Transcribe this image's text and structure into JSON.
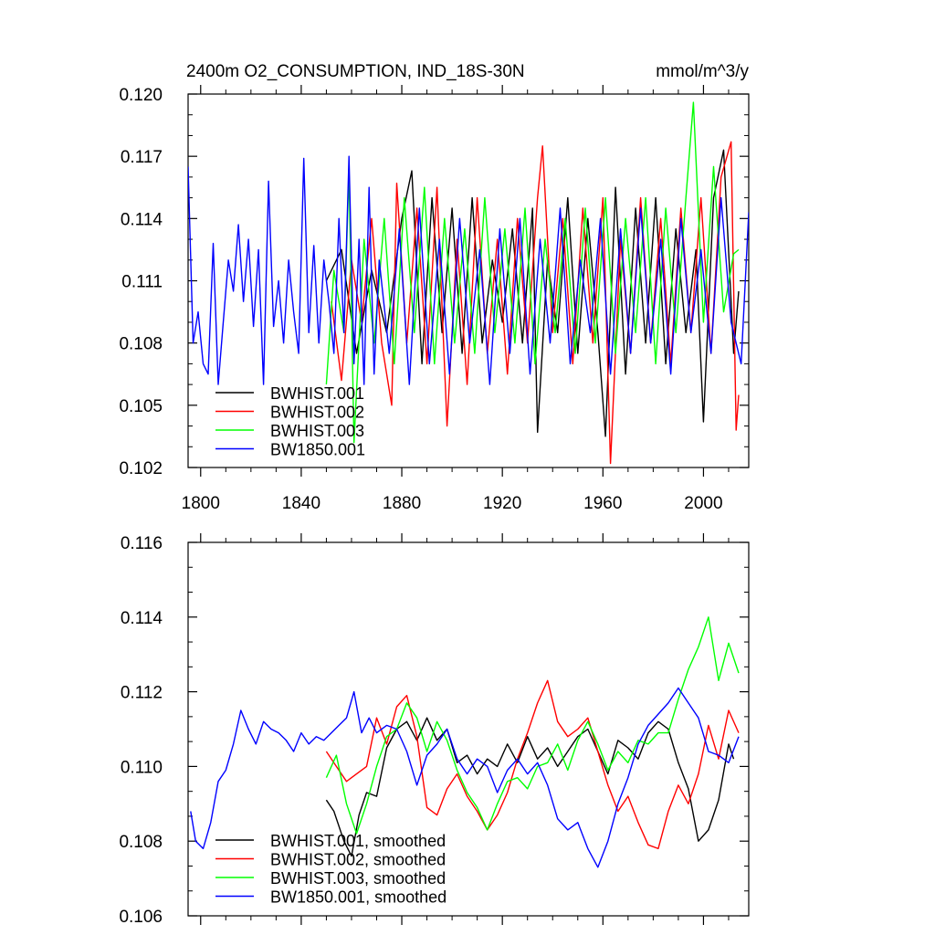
{
  "chart_data": [
    {
      "type": "line",
      "title": "2400m O2_CONSUMPTION, IND_18S-30N",
      "units": "mmol/m^3/y",
      "xlim": [
        1795,
        2018
      ],
      "ylim": [
        0.102,
        0.12
      ],
      "xticks": [
        1800,
        1840,
        1880,
        1920,
        1960,
        2000
      ],
      "xtick_labels": [
        "1800",
        "1840",
        "1880",
        "1920",
        "1960",
        "2000"
      ],
      "yticks": [
        0.102,
        0.105,
        0.108,
        0.111,
        0.114,
        0.117,
        0.12
      ],
      "ytick_labels": [
        "0.102",
        "0.105",
        "0.108",
        "0.111",
        "0.114",
        "0.117",
        "0.120"
      ],
      "legend_position": "bottom-left",
      "series": [
        {
          "name": "BWHIST.001",
          "color": "#000000",
          "x": [
            1850,
            1856,
            1862,
            1868,
            1874,
            1880,
            1884,
            1888,
            1892,
            1896,
            1900,
            1904,
            1908,
            1912,
            1916,
            1920,
            1924,
            1928,
            1932,
            1934,
            1938,
            1942,
            1946,
            1950,
            1954,
            1958,
            1961,
            1965,
            1969,
            1973,
            1977,
            1981,
            1985,
            1989,
            1993,
            1997,
            2000,
            2004,
            2008,
            2012,
            2014
          ],
          "values": [
            0.111,
            0.1125,
            0.1075,
            0.1115,
            0.1085,
            0.114,
            0.1163,
            0.107,
            0.115,
            0.1085,
            0.1145,
            0.1075,
            0.115,
            0.108,
            0.112,
            0.109,
            0.1135,
            0.108,
            0.1145,
            0.1037,
            0.112,
            0.1085,
            0.115,
            0.1075,
            0.114,
            0.1085,
            0.1035,
            0.1155,
            0.1065,
            0.1145,
            0.108,
            0.115,
            0.107,
            0.1135,
            0.1085,
            0.1125,
            0.1042,
            0.115,
            0.1173,
            0.1075,
            0.1105
          ]
        },
        {
          "name": "BWHIST.002",
          "color": "#ff0000",
          "x": [
            1852,
            1856,
            1860,
            1864,
            1868,
            1872,
            1876,
            1878,
            1882,
            1886,
            1890,
            1894,
            1898,
            1902,
            1906,
            1910,
            1914,
            1918,
            1922,
            1926,
            1930,
            1934,
            1936,
            1940,
            1944,
            1948,
            1952,
            1956,
            1960,
            1963,
            1967,
            1971,
            1975,
            1979,
            1983,
            1987,
            1991,
            1995,
            1999,
            2003,
            2007,
            2011,
            2013,
            2014
          ],
          "values": [
            0.11,
            0.1062,
            0.112,
            0.109,
            0.114,
            0.108,
            0.105,
            0.1157,
            0.108,
            0.1145,
            0.107,
            0.1155,
            0.104,
            0.113,
            0.106,
            0.115,
            0.1075,
            0.113,
            0.1065,
            0.114,
            0.108,
            0.115,
            0.1175,
            0.1085,
            0.114,
            0.107,
            0.1145,
            0.108,
            0.115,
            0.1022,
            0.113,
            0.1075,
            0.115,
            0.108,
            0.114,
            0.107,
            0.1145,
            0.1085,
            0.115,
            0.1075,
            0.116,
            0.1177,
            0.1038,
            0.1055
          ]
        },
        {
          "name": "BWHIST.003",
          "color": "#00ff00",
          "x": [
            1850,
            1853,
            1857,
            1859,
            1861,
            1865,
            1869,
            1873,
            1877,
            1881,
            1885,
            1889,
            1893,
            1897,
            1901,
            1905,
            1909,
            1913,
            1917,
            1921,
            1925,
            1929,
            1933,
            1937,
            1941,
            1945,
            1949,
            1953,
            1957,
            1961,
            1965,
            1969,
            1973,
            1977,
            1981,
            1985,
            1989,
            1993,
            1996,
            2000,
            2004,
            2008,
            2012,
            2014
          ],
          "values": [
            0.106,
            0.1115,
            0.1085,
            0.1163,
            0.1032,
            0.113,
            0.108,
            0.114,
            0.107,
            0.115,
            0.1085,
            0.1155,
            0.107,
            0.114,
            0.108,
            0.1135,
            0.1075,
            0.115,
            0.1085,
            0.1135,
            0.108,
            0.1145,
            0.107,
            0.113,
            0.1085,
            0.114,
            0.1075,
            0.1145,
            0.108,
            0.115,
            0.1075,
            0.114,
            0.1085,
            0.115,
            0.107,
            0.1145,
            0.1085,
            0.115,
            0.1196,
            0.109,
            0.1165,
            0.1095,
            0.1123,
            0.1125
          ]
        },
        {
          "name": "BW1850.001",
          "color": "#0000ff",
          "x": [
            1795,
            1797,
            1799,
            1801,
            1803,
            1805,
            1807,
            1809,
            1811,
            1813,
            1815,
            1817,
            1819,
            1821,
            1823,
            1825,
            1827,
            1829,
            1831,
            1833,
            1835,
            1837,
            1839,
            1841,
            1843,
            1845,
            1847,
            1849,
            1851,
            1853,
            1855,
            1857,
            1859,
            1861,
            1863,
            1865,
            1867,
            1869,
            1871,
            1875,
            1879,
            1883,
            1887,
            1891,
            1895,
            1899,
            1903,
            1907,
            1911,
            1915,
            1919,
            1923,
            1927,
            1931,
            1935,
            1939,
            1943,
            1947,
            1951,
            1955,
            1959,
            1963,
            1967,
            1971,
            1975,
            1979,
            1983,
            1987,
            1991,
            1995,
            1999,
            2003,
            2007,
            2011,
            2015,
            2018
          ],
          "values": [
            0.1165,
            0.108,
            0.1095,
            0.107,
            0.1065,
            0.1128,
            0.106,
            0.109,
            0.112,
            0.1105,
            0.1137,
            0.11,
            0.113,
            0.1088,
            0.1125,
            0.106,
            0.1158,
            0.1088,
            0.111,
            0.108,
            0.112,
            0.1095,
            0.1075,
            0.1169,
            0.1085,
            0.1127,
            0.108,
            0.112,
            0.11,
            0.1075,
            0.114,
            0.1085,
            0.117,
            0.107,
            0.113,
            0.106,
            0.1155,
            0.1065,
            0.112,
            0.1075,
            0.1135,
            0.106,
            0.1145,
            0.107,
            0.113,
            0.1065,
            0.114,
            0.108,
            0.1125,
            0.106,
            0.1135,
            0.1075,
            0.114,
            0.1065,
            0.113,
            0.108,
            0.1145,
            0.107,
            0.112,
            0.1085,
            0.114,
            0.1065,
            0.1135,
            0.1075,
            0.1145,
            0.108,
            0.113,
            0.1065,
            0.114,
            0.1085,
            0.1125,
            0.1075,
            0.115,
            0.109,
            0.107,
            0.1143
          ]
        }
      ]
    },
    {
      "type": "line",
      "xlim": [
        1795,
        2018
      ],
      "ylim": [
        0.106,
        0.116
      ],
      "xticks": [
        1800,
        1840,
        1880,
        1920,
        1960,
        2000
      ],
      "yticks": [
        0.106,
        0.108,
        0.11,
        0.112,
        0.114,
        0.116
      ],
      "ytick_labels": [
        "0.106",
        "0.108",
        "0.110",
        "0.112",
        "0.114",
        "0.116"
      ],
      "legend_position": "bottom-left",
      "series": [
        {
          "name": "BWHIST.001, smoothed",
          "color": "#000000",
          "x": [
            1850,
            1853,
            1857,
            1860,
            1863,
            1866,
            1870,
            1874,
            1878,
            1882,
            1886,
            1890,
            1894,
            1898,
            1902,
            1906,
            1910,
            1914,
            1918,
            1922,
            1926,
            1930,
            1934,
            1938,
            1942,
            1946,
            1950,
            1954,
            1958,
            1962,
            1966,
            1970,
            1974,
            1978,
            1982,
            1986,
            1990,
            1994,
            1998,
            2002,
            2006,
            2010,
            2012
          ],
          "values": [
            0.1091,
            0.1088,
            0.108,
            0.1076,
            0.1087,
            0.1093,
            0.1092,
            0.1105,
            0.111,
            0.1112,
            0.1107,
            0.1113,
            0.1107,
            0.111,
            0.1101,
            0.1103,
            0.1098,
            0.1102,
            0.11,
            0.1106,
            0.1101,
            0.1108,
            0.1102,
            0.1105,
            0.11,
            0.1104,
            0.1108,
            0.111,
            0.1104,
            0.1098,
            0.1107,
            0.1105,
            0.1102,
            0.1109,
            0.1112,
            0.111,
            0.1101,
            0.1094,
            0.108,
            0.1083,
            0.1091,
            0.1106,
            0.1102
          ]
        },
        {
          "name": "BWHIST.002, smoothed",
          "color": "#ff0000",
          "x": [
            1850,
            1854,
            1858,
            1862,
            1866,
            1870,
            1874,
            1878,
            1882,
            1886,
            1890,
            1894,
            1898,
            1902,
            1906,
            1910,
            1914,
            1918,
            1922,
            1926,
            1930,
            1934,
            1938,
            1942,
            1946,
            1950,
            1954,
            1958,
            1962,
            1966,
            1970,
            1974,
            1978,
            1982,
            1986,
            1990,
            1994,
            1998,
            2002,
            2006,
            2010,
            2014
          ],
          "values": [
            0.1104,
            0.11,
            0.1096,
            0.1098,
            0.11,
            0.1113,
            0.1106,
            0.1116,
            0.1119,
            0.1108,
            0.1089,
            0.1087,
            0.1094,
            0.1098,
            0.1092,
            0.1088,
            0.1083,
            0.1087,
            0.1093,
            0.1102,
            0.1109,
            0.1117,
            0.1123,
            0.1112,
            0.1108,
            0.111,
            0.1113,
            0.1104,
            0.1095,
            0.1088,
            0.1092,
            0.1085,
            0.1079,
            0.1078,
            0.1088,
            0.1095,
            0.109,
            0.1098,
            0.1111,
            0.1102,
            0.1115,
            0.1109
          ]
        },
        {
          "name": "BWHIST.003, smoothed",
          "color": "#00ff00",
          "x": [
            1850,
            1854,
            1858,
            1862,
            1866,
            1870,
            1874,
            1878,
            1882,
            1886,
            1890,
            1894,
            1898,
            1902,
            1906,
            1910,
            1914,
            1918,
            1922,
            1926,
            1930,
            1934,
            1938,
            1942,
            1946,
            1950,
            1954,
            1958,
            1962,
            1966,
            1970,
            1974,
            1978,
            1982,
            1986,
            1990,
            1994,
            1998,
            2002,
            2006,
            2010,
            2014
          ],
          "values": [
            0.1097,
            0.1103,
            0.109,
            0.1082,
            0.109,
            0.11,
            0.1108,
            0.111,
            0.1117,
            0.1113,
            0.1104,
            0.1112,
            0.1107,
            0.1099,
            0.1093,
            0.1089,
            0.1083,
            0.109,
            0.1096,
            0.1097,
            0.1094,
            0.11,
            0.1101,
            0.1106,
            0.1099,
            0.1107,
            0.1112,
            0.1106,
            0.1099,
            0.1104,
            0.1101,
            0.1107,
            0.1106,
            0.1109,
            0.1109,
            0.1118,
            0.1126,
            0.1132,
            0.114,
            0.1123,
            0.1133,
            0.1125
          ]
        },
        {
          "name": "BW1850.001, smoothed",
          "color": "#0000ff",
          "x": [
            1796,
            1798,
            1801,
            1804,
            1807,
            1810,
            1813,
            1816,
            1819,
            1822,
            1825,
            1828,
            1831,
            1834,
            1837,
            1840,
            1843,
            1846,
            1849,
            1852,
            1855,
            1858,
            1861,
            1864,
            1867,
            1870,
            1874,
            1878,
            1882,
            1886,
            1890,
            1894,
            1898,
            1902,
            1906,
            1910,
            1914,
            1918,
            1922,
            1926,
            1930,
            1934,
            1938,
            1942,
            1946,
            1950,
            1954,
            1958,
            1962,
            1966,
            1970,
            1974,
            1978,
            1982,
            1986,
            1990,
            1994,
            1998,
            2002,
            2006,
            2010,
            2014
          ],
          "values": [
            0.1088,
            0.108,
            0.1078,
            0.1085,
            0.1096,
            0.1099,
            0.1106,
            0.1115,
            0.111,
            0.1106,
            0.1112,
            0.111,
            0.1109,
            0.1107,
            0.1104,
            0.1109,
            0.1106,
            0.1108,
            0.1107,
            0.1109,
            0.1111,
            0.1113,
            0.112,
            0.1109,
            0.1113,
            0.1109,
            0.1111,
            0.111,
            0.1104,
            0.1095,
            0.1103,
            0.1106,
            0.111,
            0.1102,
            0.1098,
            0.1102,
            0.11,
            0.1093,
            0.1099,
            0.1102,
            0.1098,
            0.1101,
            0.1095,
            0.1086,
            0.1083,
            0.1085,
            0.1078,
            0.1073,
            0.108,
            0.109,
            0.1097,
            0.1106,
            0.1111,
            0.1114,
            0.1117,
            0.1121,
            0.1117,
            0.1113,
            0.1104,
            0.1103,
            0.1101,
            0.1108
          ]
        }
      ]
    }
  ]
}
